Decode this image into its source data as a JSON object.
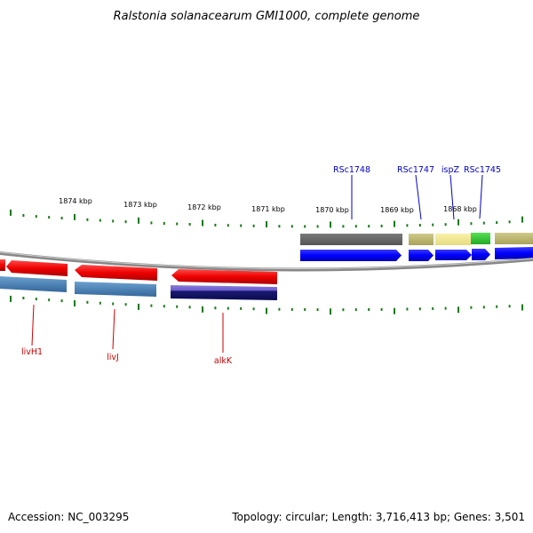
{
  "title": "Ralstonia solanacearum GMI1000, complete genome",
  "footer": {
    "accession": "Accession: NC_003295",
    "info": "Topology: circular; Length: 3,716,413 bp; Genes: 3,501"
  },
  "scale_labels": [
    "1874 kbp",
    "1873 kbp",
    "1872 kbp",
    "1871 kbp",
    "1870 kbp",
    "1869 kbp",
    "1868 kbp"
  ],
  "genes_forward": [
    {
      "name": "RSc1748",
      "color": "#0000cc"
    },
    {
      "name": "RSc1747",
      "color": "#0000cc"
    },
    {
      "name": "ispZ",
      "color": "#0000cc"
    },
    {
      "name": "RSc1745",
      "color": "#0000cc"
    }
  ],
  "genes_reverse": [
    {
      "name": "livH1",
      "color": "#cc0000"
    },
    {
      "name": "livJ",
      "color": "#cc0000"
    },
    {
      "name": "alkK",
      "color": "#cc0000"
    }
  ],
  "colors": {
    "forward_cds": "#0000ff",
    "reverse_cds": "#ee0000",
    "backbone": "#888888",
    "ticks": "#1a7a1a",
    "rev_track_blue": "#4a82b4",
    "rev_track_navy": "#1a1a80",
    "fwd_track_gray": "#6a6a6a",
    "fwd_track_olive": "#bdb76b",
    "fwd_track_yellow": "#f0e68c",
    "fwd_track_green": "#33cc33"
  }
}
